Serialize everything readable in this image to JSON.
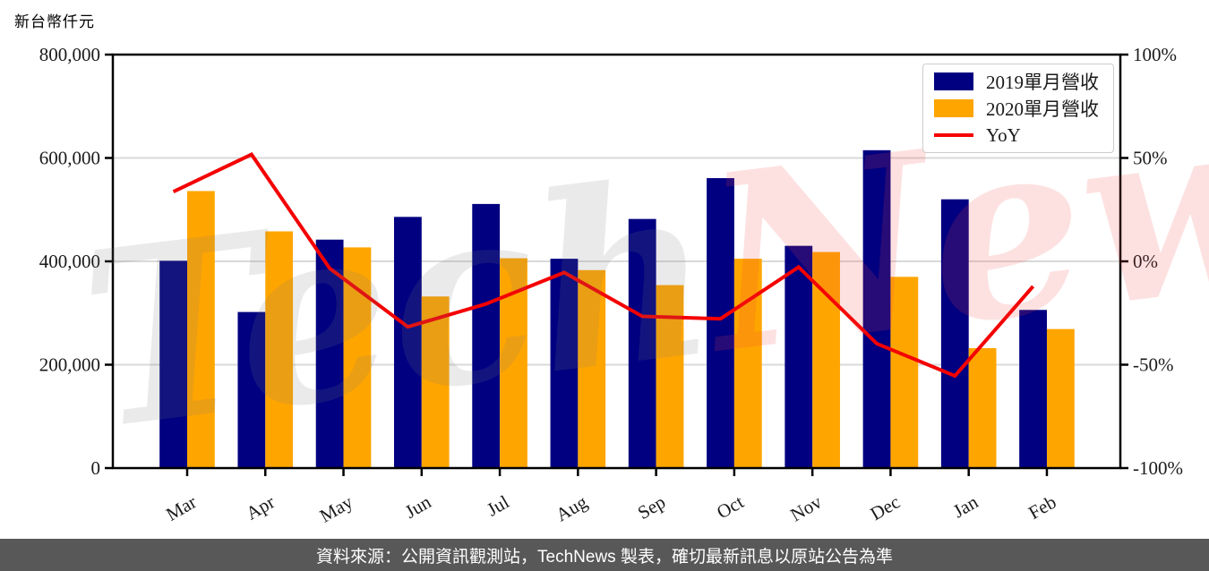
{
  "title": "新台幣仟元",
  "watermark": {
    "part1": "Tech",
    "part2": "News"
  },
  "legend": {
    "yoy_label": "YoY"
  },
  "footer": {
    "text": "資料來源：公開資訊觀測站，TechNews 製表，確切最新訊息以原站公告為準"
  },
  "chart_data": {
    "type": "bar+line",
    "title": "新台幣仟元",
    "categories": [
      "Mar",
      "Apr",
      "May",
      "Jun",
      "Jul",
      "Aug",
      "Sep",
      "Oct",
      "Nov",
      "Dec",
      "Jan",
      "Feb"
    ],
    "series": [
      {
        "name": "2019單月營收",
        "color": "#000080",
        "values": [
          401000,
          302000,
          442000,
          486000,
          511000,
          405000,
          482000,
          561000,
          430000,
          615000,
          520000,
          306000
        ]
      },
      {
        "name": "2020單月營收",
        "color": "#FFA500",
        "values": [
          536000,
          458000,
          427000,
          332000,
          406000,
          383000,
          354000,
          405000,
          418000,
          370000,
          232000,
          269000
        ]
      }
    ],
    "line_series": {
      "name": "YoY",
      "color": "#F40000",
      "unit": "%",
      "values": [
        33.7,
        51.7,
        -3.4,
        -31.7,
        -20.6,
        -5.4,
        -26.6,
        -27.8,
        -2.8,
        -39.8,
        -55.4,
        -12.1
      ]
    },
    "left_axis": {
      "min": 0,
      "max": 800000,
      "ticks": [
        {
          "v": 800000,
          "label": "800,000"
        },
        {
          "v": 600000,
          "label": "600,000"
        },
        {
          "v": 400000,
          "label": "400,000"
        },
        {
          "v": 200000,
          "label": "200,000"
        },
        {
          "v": 0,
          "label": "0"
        }
      ]
    },
    "right_axis": {
      "min": -100,
      "max": 100,
      "ticks": [
        {
          "v": 100,
          "label": "100%"
        },
        {
          "v": 50,
          "label": "50%"
        },
        {
          "v": 0,
          "label": "0%"
        },
        {
          "v": -50,
          "label": "-50%"
        },
        {
          "v": -100,
          "label": "-100%"
        }
      ]
    },
    "grid": "horizontal",
    "gridline_values": [
      600000,
      400000,
      200000
    ],
    "legend_position": "top-right",
    "colors": {
      "grid": "#d9d9d9",
      "frame": "#000000",
      "footer_bg": "#585858",
      "watermark_pink": "#fbe4e4",
      "watermark_gray": "#ebebeb"
    }
  }
}
